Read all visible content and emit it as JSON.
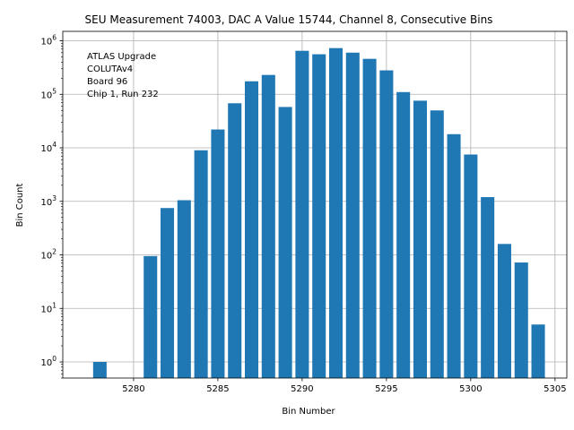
{
  "chart_data": {
    "type": "bar",
    "title": "SEU Measurement 74003, DAC A Value 15744, Channel 8, Consecutive Bins",
    "xlabel": "Bin Number",
    "ylabel": "Bin Count",
    "yscale": "log",
    "xlim": [
      5275.8,
      5305.7
    ],
    "ylim": [
      0.5,
      1500000
    ],
    "grid": true,
    "bar_color": "#1f77b4",
    "annotation_lines": [
      "ATLAS Upgrade",
      "COLUTAv4",
      " Board 96",
      "Chip 1, Run 232"
    ],
    "x_ticks": [
      {
        "value": 5280,
        "label": "5280"
      },
      {
        "value": 5285,
        "label": "5285"
      },
      {
        "value": 5290,
        "label": "5290"
      },
      {
        "value": 5295,
        "label": "5295"
      },
      {
        "value": 5300,
        "label": "5300"
      },
      {
        "value": 5305,
        "label": "5305"
      }
    ],
    "y_ticks": [
      {
        "value": 1,
        "base": "10",
        "exp": "0"
      },
      {
        "value": 10,
        "base": "10",
        "exp": "1"
      },
      {
        "value": 100,
        "base": "10",
        "exp": "2"
      },
      {
        "value": 1000,
        "base": "10",
        "exp": "3"
      },
      {
        "value": 10000,
        "base": "10",
        "exp": "4"
      },
      {
        "value": 100000,
        "base": "10",
        "exp": "5"
      },
      {
        "value": 1000000,
        "base": "10",
        "exp": "6"
      }
    ],
    "bars": [
      {
        "x": 5278,
        "y": 1
      },
      {
        "x": 5281,
        "y": 95
      },
      {
        "x": 5282,
        "y": 750
      },
      {
        "x": 5283,
        "y": 1050
      },
      {
        "x": 5284,
        "y": 9000
      },
      {
        "x": 5285,
        "y": 22000
      },
      {
        "x": 5286,
        "y": 68000
      },
      {
        "x": 5287,
        "y": 175000
      },
      {
        "x": 5288,
        "y": 230000
      },
      {
        "x": 5289,
        "y": 58000
      },
      {
        "x": 5290,
        "y": 650000
      },
      {
        "x": 5291,
        "y": 560000
      },
      {
        "x": 5292,
        "y": 730000
      },
      {
        "x": 5293,
        "y": 600000
      },
      {
        "x": 5294,
        "y": 460000
      },
      {
        "x": 5295,
        "y": 280000
      },
      {
        "x": 5296,
        "y": 110000
      },
      {
        "x": 5297,
        "y": 76000
      },
      {
        "x": 5298,
        "y": 50000
      },
      {
        "x": 5299,
        "y": 18000
      },
      {
        "x": 5300,
        "y": 7500
      },
      {
        "x": 5301,
        "y": 1200
      },
      {
        "x": 5302,
        "y": 160
      },
      {
        "x": 5303,
        "y": 72
      },
      {
        "x": 5304,
        "y": 5
      }
    ]
  }
}
